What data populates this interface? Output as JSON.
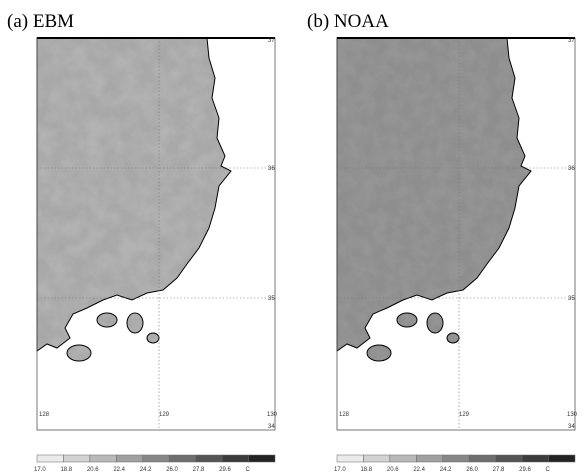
{
  "panels": [
    {
      "label": "(a) EBM",
      "lon_labels": [
        "128",
        "129",
        "130"
      ],
      "lat_labels": [
        "37",
        "36",
        "35",
        "34"
      ],
      "colorbar_labels": [
        "17.0",
        "18.8",
        "20.6",
        "22.4",
        "24.2",
        "26.0",
        "27.8",
        "29.6",
        "C"
      ]
    },
    {
      "label": "(b) NOAA",
      "lon_labels": [
        "128",
        "129",
        "130"
      ],
      "lat_labels": [
        "37",
        "36",
        "35",
        "34"
      ],
      "colorbar_labels": [
        "17.0",
        "18.8",
        "20.6",
        "22.4",
        "24.2",
        "26.0",
        "27.8",
        "29.6",
        "C"
      ]
    }
  ]
}
